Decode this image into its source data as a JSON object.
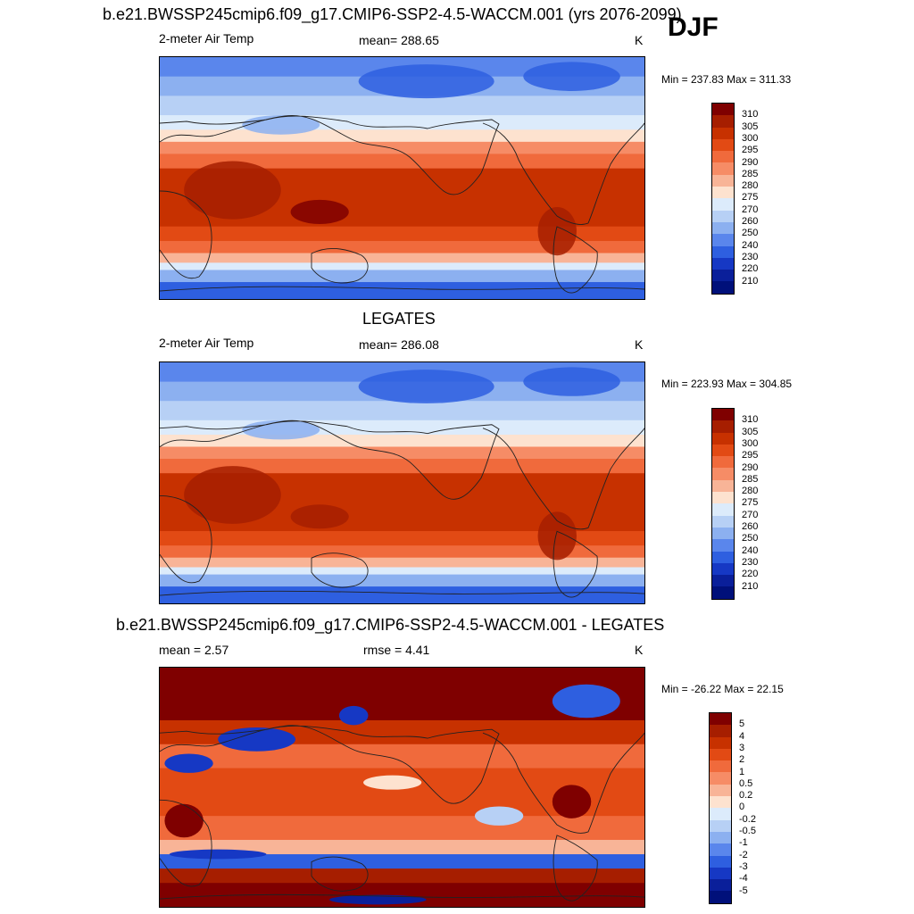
{
  "season": "DJF",
  "panels": [
    {
      "title": "b.e21.BWSSP245cmip6.f09_g17.CMIP6-SSP2-4.5-WACCM.001 (yrs 2076-2099)",
      "left": "2-meter Air Temp",
      "center": "mean= 288.65",
      "right": "K",
      "minmax": "Min = 237.83 Max = 311.33",
      "levels": [
        "310",
        "305",
        "300",
        "295",
        "290",
        "285",
        "280",
        "275",
        "270",
        "260",
        "250",
        "240",
        "230",
        "220",
        "210"
      ],
      "colors": [
        "#7f0000",
        "#a61e00",
        "#c73100",
        "#e24a14",
        "#f06a3c",
        "#f68c66",
        "#f8b497",
        "#fde2cf",
        "#dcebfb",
        "#b7d0f5",
        "#8cb0f0",
        "#5a86ec",
        "#2e5fe0",
        "#1638c4",
        "#0a1f9a",
        "#00107a"
      ],
      "style": "abs"
    },
    {
      "title": "LEGATES",
      "left": "2-meter Air Temp",
      "center": "mean= 286.08",
      "right": "K",
      "minmax": "Min = 223.93 Max = 304.85",
      "levels": [
        "310",
        "305",
        "300",
        "295",
        "290",
        "285",
        "280",
        "275",
        "270",
        "260",
        "250",
        "240",
        "230",
        "220",
        "210"
      ],
      "colors": [
        "#7f0000",
        "#a61e00",
        "#c73100",
        "#e24a14",
        "#f06a3c",
        "#f68c66",
        "#f8b497",
        "#fde2cf",
        "#dcebfb",
        "#b7d0f5",
        "#8cb0f0",
        "#5a86ec",
        "#2e5fe0",
        "#1638c4",
        "#0a1f9a",
        "#00107a"
      ],
      "style": "abs"
    },
    {
      "title": "b.e21.BWSSP245cmip6.f09_g17.CMIP6-SSP2-4.5-WACCM.001 - LEGATES",
      "left": "mean =   2.57",
      "center": "rmse =   4.41",
      "right": "K",
      "minmax": "Min = -26.22 Max =  22.15",
      "levels": [
        "5",
        "4",
        "3",
        "2",
        "1",
        "0.5",
        "0.2",
        "0",
        "-0.2",
        "-0.5",
        "-1",
        "-2",
        "-3",
        "-4",
        "-5"
      ],
      "colors": [
        "#7f0000",
        "#a61e00",
        "#c73100",
        "#e24a14",
        "#f06a3c",
        "#f68c66",
        "#f8b497",
        "#fde2cf",
        "#dcebfb",
        "#b7d0f5",
        "#8cb0f0",
        "#5a86ec",
        "#2e5fe0",
        "#1638c4",
        "#0a1f9a",
        "#00107a"
      ],
      "style": "diff"
    }
  ]
}
